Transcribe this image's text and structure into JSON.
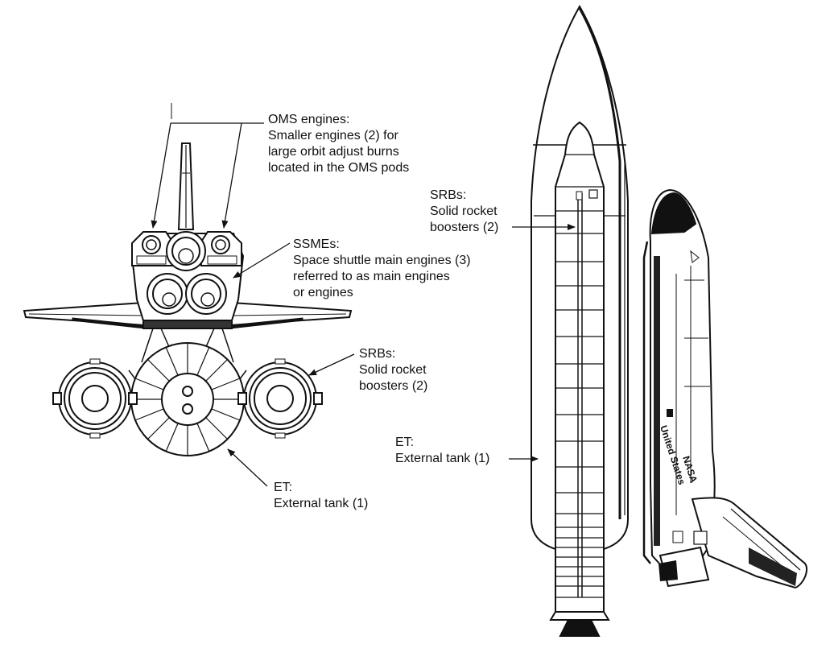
{
  "labels": {
    "oms": {
      "title": "OMS engines:",
      "line1": "Smaller engines (2) for",
      "line2": "large orbit adjust burns",
      "line3": "located in the OMS pods"
    },
    "ssme": {
      "title": "SSMEs:",
      "line1": "Space shuttle main engines (3)",
      "line2": "referred to as main engines",
      "line3": "or engines"
    },
    "srb_rear": {
      "title": "SRBs:",
      "line1": "Solid rocket",
      "line2": "boosters (2)"
    },
    "et_rear": {
      "title": "ET:",
      "line1": "External tank (1)"
    },
    "srb_side": {
      "title": "SRBs:",
      "line1": "Solid rocket",
      "line2": "boosters (2)"
    },
    "et_side": {
      "title": "ET:",
      "line1": "External tank (1)"
    }
  },
  "orbiter_markings": {
    "country": "United States",
    "agency": "NASA"
  }
}
